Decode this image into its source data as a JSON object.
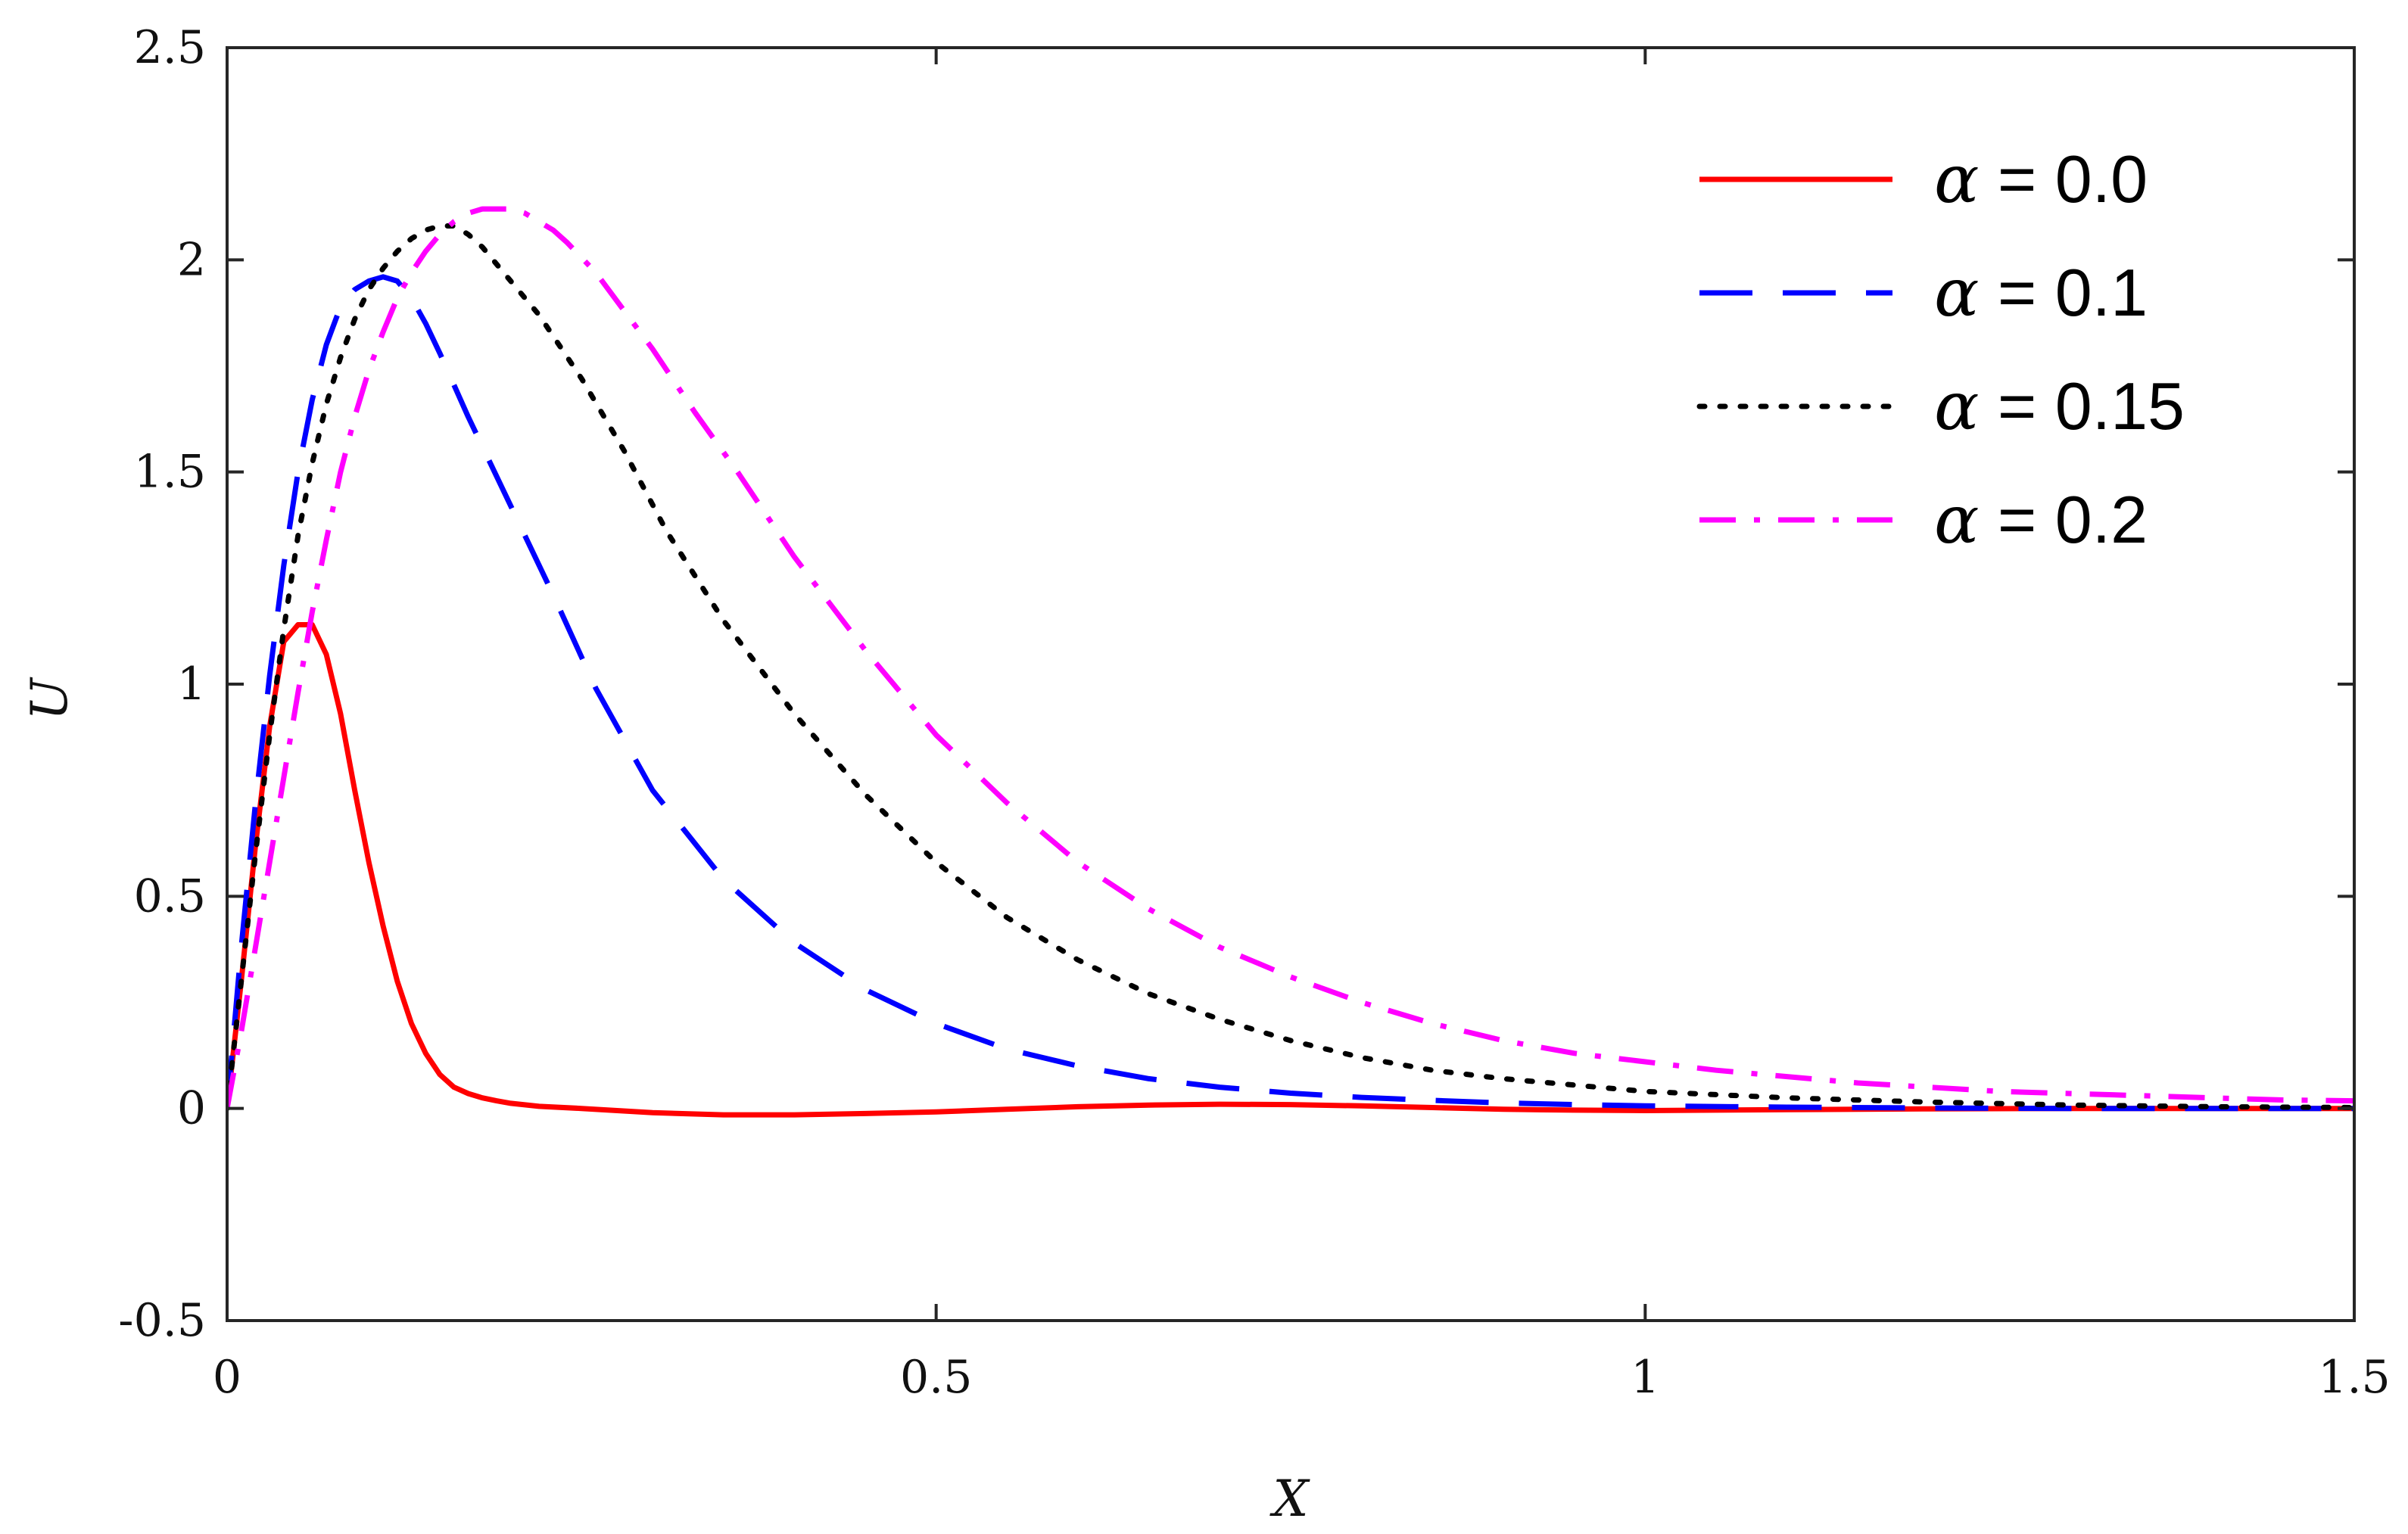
{
  "chart_data": {
    "type": "line",
    "title": "",
    "xlabel": "X",
    "ylabel": "U",
    "xlim": [
      0,
      1.5
    ],
    "ylim": [
      -0.5,
      2.5
    ],
    "xticks": [
      0,
      0.5,
      1,
      1.5
    ],
    "xtick_labels": [
      "0",
      "0.5",
      "1",
      "1.5"
    ],
    "yticks": [
      -0.5,
      0,
      0.5,
      1,
      1.5,
      2,
      2.5
    ],
    "ytick_labels": [
      "-0.5",
      "0",
      "0.5",
      "1",
      "1.5",
      "2",
      "2.5"
    ],
    "grid": false,
    "legend_position": "top-right",
    "series": [
      {
        "name": "α = 0.0",
        "symbol": "α",
        "value_text": " = 0.0",
        "color": "#ff0000",
        "style": "solid",
        "x": [
          0,
          0.01,
          0.02,
          0.03,
          0.04,
          0.05,
          0.06,
          0.07,
          0.08,
          0.09,
          0.1,
          0.11,
          0.12,
          0.13,
          0.14,
          0.15,
          0.16,
          0.17,
          0.18,
          0.19,
          0.2,
          0.22,
          0.25,
          0.3,
          0.35,
          0.4,
          0.45,
          0.5,
          0.55,
          0.6,
          0.65,
          0.7,
          0.75,
          0.8,
          0.85,
          0.9,
          0.95,
          1.0,
          1.05,
          1.1,
          1.2,
          1.3,
          1.4,
          1.5
        ],
        "y": [
          0,
          0.3,
          0.62,
          0.9,
          1.1,
          1.14,
          1.14,
          1.07,
          0.93,
          0.75,
          0.58,
          0.43,
          0.3,
          0.2,
          0.13,
          0.08,
          0.05,
          0.035,
          0.025,
          0.018,
          0.012,
          0.005,
          0.0,
          -0.01,
          -0.015,
          -0.015,
          -0.012,
          -0.008,
          -0.002,
          0.004,
          0.008,
          0.01,
          0.009,
          0.006,
          0.002,
          -0.002,
          -0.004,
          -0.005,
          -0.004,
          -0.003,
          -0.001,
          0.0,
          0.0,
          0.0
        ]
      },
      {
        "name": "α = 0.1",
        "symbol": "α",
        "value_text": " = 0.1",
        "color": "#0000ff",
        "style": "dashed",
        "x": [
          0,
          0.01,
          0.02,
          0.03,
          0.04,
          0.05,
          0.06,
          0.07,
          0.08,
          0.09,
          0.1,
          0.11,
          0.12,
          0.13,
          0.14,
          0.15,
          0.17,
          0.2,
          0.23,
          0.26,
          0.3,
          0.35,
          0.4,
          0.45,
          0.5,
          0.55,
          0.6,
          0.65,
          0.7,
          0.75,
          0.8,
          0.85,
          0.9,
          0.95,
          1.0,
          1.1,
          1.2,
          1.3,
          1.4,
          1.5
        ],
        "y": [
          0,
          0.38,
          0.72,
          1.02,
          1.28,
          1.5,
          1.67,
          1.8,
          1.89,
          1.93,
          1.95,
          1.96,
          1.95,
          1.91,
          1.85,
          1.78,
          1.63,
          1.42,
          1.21,
          0.99,
          0.75,
          0.54,
          0.39,
          0.28,
          0.2,
          0.14,
          0.1,
          0.07,
          0.05,
          0.036,
          0.026,
          0.019,
          0.013,
          0.009,
          0.006,
          0.003,
          0.001,
          0.0,
          0.0,
          0.0
        ]
      },
      {
        "name": "α = 0.15",
        "symbol": "α",
        "value_text": " = 0.15",
        "color": "#000000",
        "style": "dotted",
        "x": [
          0,
          0.01,
          0.02,
          0.03,
          0.04,
          0.05,
          0.06,
          0.07,
          0.08,
          0.09,
          0.1,
          0.11,
          0.12,
          0.13,
          0.14,
          0.15,
          0.16,
          0.17,
          0.18,
          0.2,
          0.22,
          0.25,
          0.28,
          0.31,
          0.35,
          0.4,
          0.45,
          0.5,
          0.55,
          0.6,
          0.65,
          0.7,
          0.75,
          0.8,
          0.85,
          0.9,
          1.0,
          1.1,
          1.2,
          1.3,
          1.4,
          1.5
        ],
        "y": [
          0,
          0.3,
          0.6,
          0.88,
          1.13,
          1.35,
          1.52,
          1.66,
          1.77,
          1.86,
          1.93,
          1.98,
          2.02,
          2.05,
          2.07,
          2.08,
          2.08,
          2.06,
          2.03,
          1.95,
          1.87,
          1.72,
          1.55,
          1.36,
          1.15,
          0.93,
          0.74,
          0.58,
          0.45,
          0.35,
          0.27,
          0.21,
          0.16,
          0.12,
          0.09,
          0.07,
          0.04,
          0.025,
          0.015,
          0.008,
          0.004,
          0.002
        ]
      },
      {
        "name": "α = 0.2",
        "symbol": "α",
        "value_text": " = 0.2",
        "color": "#ff00ff",
        "style": "dashdot",
        "x": [
          0,
          0.01,
          0.02,
          0.03,
          0.04,
          0.05,
          0.06,
          0.07,
          0.08,
          0.09,
          0.1,
          0.11,
          0.12,
          0.13,
          0.14,
          0.15,
          0.16,
          0.17,
          0.18,
          0.19,
          0.2,
          0.21,
          0.22,
          0.23,
          0.24,
          0.26,
          0.28,
          0.3,
          0.33,
          0.36,
          0.4,
          0.45,
          0.5,
          0.55,
          0.6,
          0.65,
          0.7,
          0.75,
          0.8,
          0.85,
          0.9,
          0.95,
          1.0,
          1.05,
          1.1,
          1.15,
          1.2,
          1.25,
          1.3,
          1.35,
          1.4,
          1.45,
          1.5
        ],
        "y": [
          0,
          0.18,
          0.38,
          0.58,
          0.78,
          0.98,
          1.17,
          1.34,
          1.5,
          1.63,
          1.74,
          1.83,
          1.91,
          1.97,
          2.02,
          2.06,
          2.09,
          2.11,
          2.12,
          2.12,
          2.12,
          2.11,
          2.09,
          2.07,
          2.04,
          1.97,
          1.88,
          1.79,
          1.64,
          1.5,
          1.3,
          1.08,
          0.88,
          0.72,
          0.58,
          0.47,
          0.38,
          0.31,
          0.25,
          0.2,
          0.16,
          0.13,
          0.11,
          0.09,
          0.075,
          0.06,
          0.05,
          0.04,
          0.035,
          0.03,
          0.025,
          0.02,
          0.018
        ]
      }
    ]
  }
}
